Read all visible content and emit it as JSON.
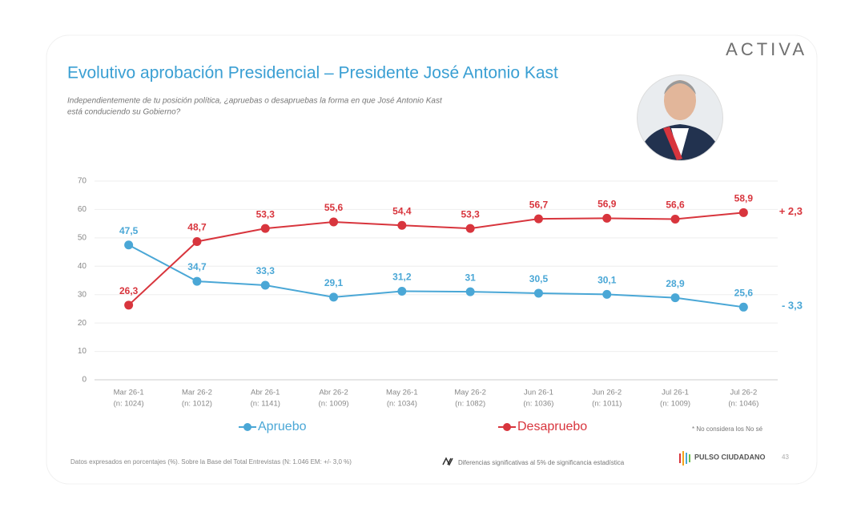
{
  "header": {
    "logo": "ACTIVA",
    "title": "Evolutivo aprobación Presidencial – Presidente José Antonio Kast",
    "subtitle_line1": "Independientemente de tu posición política, ¿apruebas o desapruebas la forma en que José Antonio Kast",
    "subtitle_line2": "está conduciendo su Gobierno?"
  },
  "chart_data": {
    "type": "line",
    "categories": [
      "Mar 26-1",
      "Mar 26-2",
      "Abr 26-1",
      "Abr 26-2",
      "May 26-1",
      "May 26-2",
      "Jun 26-1",
      "Jun 26-2",
      "Jul 26-1",
      "Jul 26-2"
    ],
    "sample_sizes": [
      "(n: 1024)",
      "(n: 1012)",
      "(n: 1141)",
      "(n: 1009)",
      "(n: 1034)",
      "(n: 1082)",
      "(n: 1036)",
      "(n: 1011)",
      "(n: 1009)",
      "(n: 1046)"
    ],
    "series": [
      {
        "name": "Apruebo",
        "color": "#4aa7d6",
        "values": [
          47.5,
          34.7,
          33.3,
          29.1,
          31.2,
          31,
          30.5,
          30.1,
          28.9,
          25.6
        ],
        "value_labels": [
          "47,5",
          "34,7",
          "33,3",
          "29,1",
          "31,2",
          "31",
          "30,5",
          "30,1",
          "28,9",
          "25,6"
        ],
        "change_label": "-  3,3"
      },
      {
        "name": "Desapruebo",
        "color": "#d8353d",
        "values": [
          26.3,
          48.7,
          53.3,
          55.6,
          54.4,
          53.3,
          56.7,
          56.9,
          56.6,
          58.9
        ],
        "value_labels": [
          "26,3",
          "48,7",
          "53,3",
          "55,6",
          "54,4",
          "53,3",
          "56,7",
          "56,9",
          "56,6",
          "58,9"
        ],
        "change_label": "+ 2,3"
      }
    ],
    "ylim": [
      0,
      70
    ],
    "yticks": [
      0,
      10,
      20,
      30,
      40,
      50,
      60,
      70
    ],
    "grid": true,
    "note": "* No considera los No sé"
  },
  "footer": {
    "source": "Datos expresados en porcentajes (%). Sobre la Base del Total Entrevistas (N: 1.046  EM: +/- 3,0 %)",
    "significance": "Diferencias  significativas  al 5% de significancia estadística",
    "brand": "PULSO CIUDADANO",
    "page": "43"
  }
}
